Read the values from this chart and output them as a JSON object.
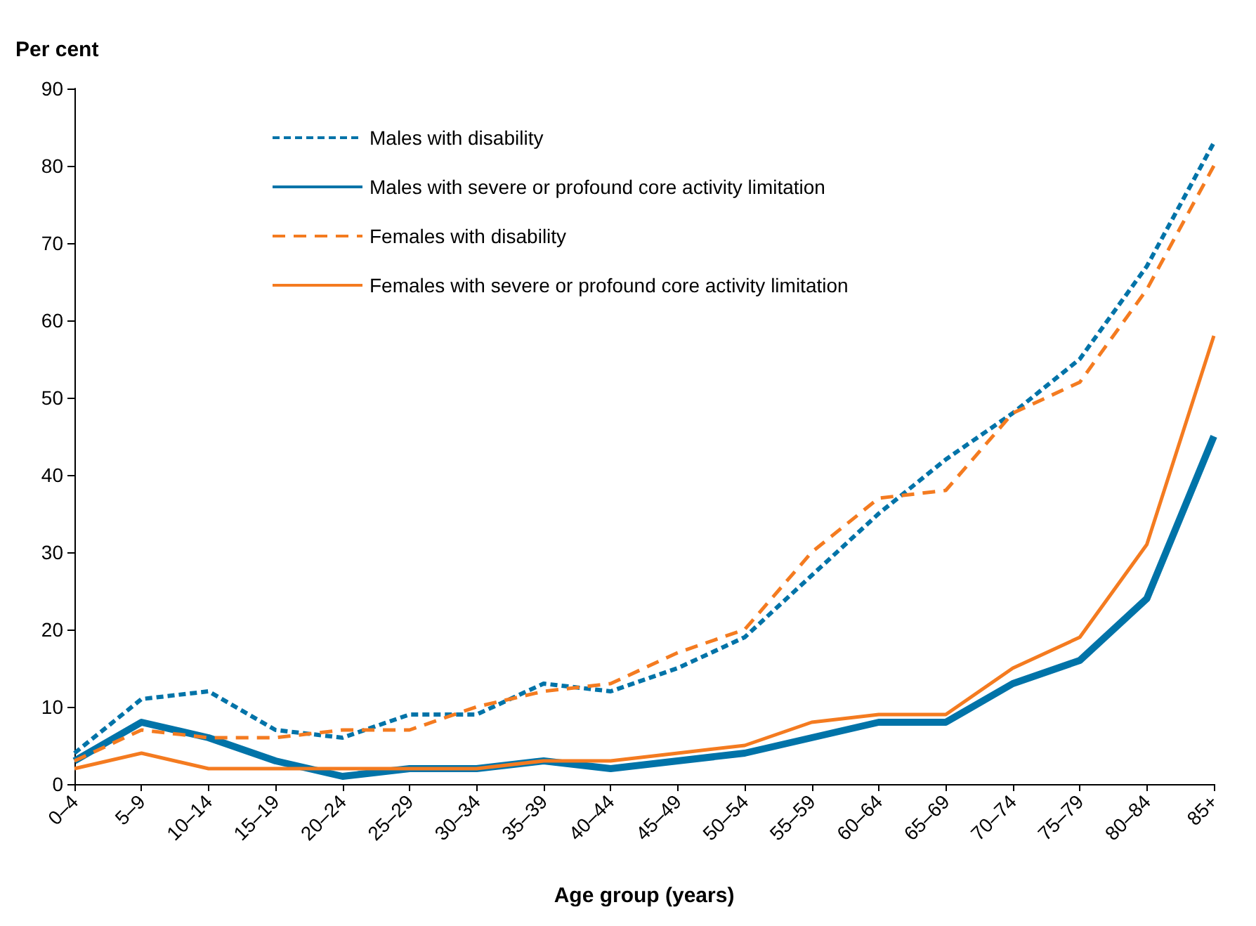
{
  "chart_data": {
    "type": "line",
    "ylabel": "Per cent",
    "xlabel": "Age group (years)",
    "categories": [
      "0–4",
      "5–9",
      "10–14",
      "15–19",
      "20–24",
      "25–29",
      "30–34",
      "35–39",
      "40–44",
      "45–49",
      "50–54",
      "55–59",
      "60–64",
      "65–69",
      "70–74",
      "75–79",
      "80–84",
      "85+"
    ],
    "series": [
      {
        "name": "Males with disability",
        "color": "#0073a8",
        "line_style": "dotted",
        "values": [
          4,
          11,
          12,
          7,
          6,
          9,
          9,
          13,
          12,
          15,
          19,
          27,
          35,
          42,
          48,
          55,
          67,
          83
        ]
      },
      {
        "name": "Males with severe or profound core activity limitation",
        "color": "#0073a8",
        "line_style": "solid",
        "values": [
          3,
          8,
          6,
          3,
          1,
          2,
          2,
          3,
          2,
          3,
          4,
          6,
          8,
          8,
          13,
          16,
          24,
          45
        ]
      },
      {
        "name": "Females with disability",
        "color": "#f47b20",
        "line_style": "dashed",
        "values": [
          3,
          7,
          6,
          6,
          7,
          7,
          10,
          12,
          13,
          17,
          20,
          30,
          37,
          38,
          48,
          52,
          64,
          80
        ]
      },
      {
        "name": "Females with severe or profound core activity limitation",
        "color": "#f47b20",
        "line_style": "solid",
        "values": [
          2,
          4,
          2,
          2,
          2,
          2,
          2,
          3,
          3,
          4,
          5,
          8,
          9,
          9,
          15,
          19,
          31,
          58
        ]
      }
    ],
    "ylim": [
      0,
      90
    ],
    "yticks": [
      0,
      10,
      20,
      30,
      40,
      50,
      60,
      70,
      80,
      90
    ],
    "grid": false,
    "legend": "top left",
    "marker": "none"
  }
}
